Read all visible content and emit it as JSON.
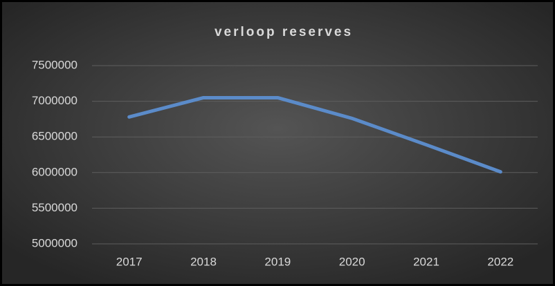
{
  "chart_data": {
    "type": "line",
    "title": "verloop reserves",
    "categories": [
      "2017",
      "2018",
      "2019",
      "2020",
      "2021",
      "2022"
    ],
    "series": [
      {
        "color": "#5b8bc9",
        "values": [
          6780000,
          7050000,
          7050000,
          6760000,
          6390000,
          6010000
        ]
      }
    ],
    "ylim": [
      5000000,
      7500000
    ],
    "yticks": [
      5000000,
      5500000,
      6000000,
      6500000,
      7000000,
      7500000
    ],
    "grid": true
  }
}
